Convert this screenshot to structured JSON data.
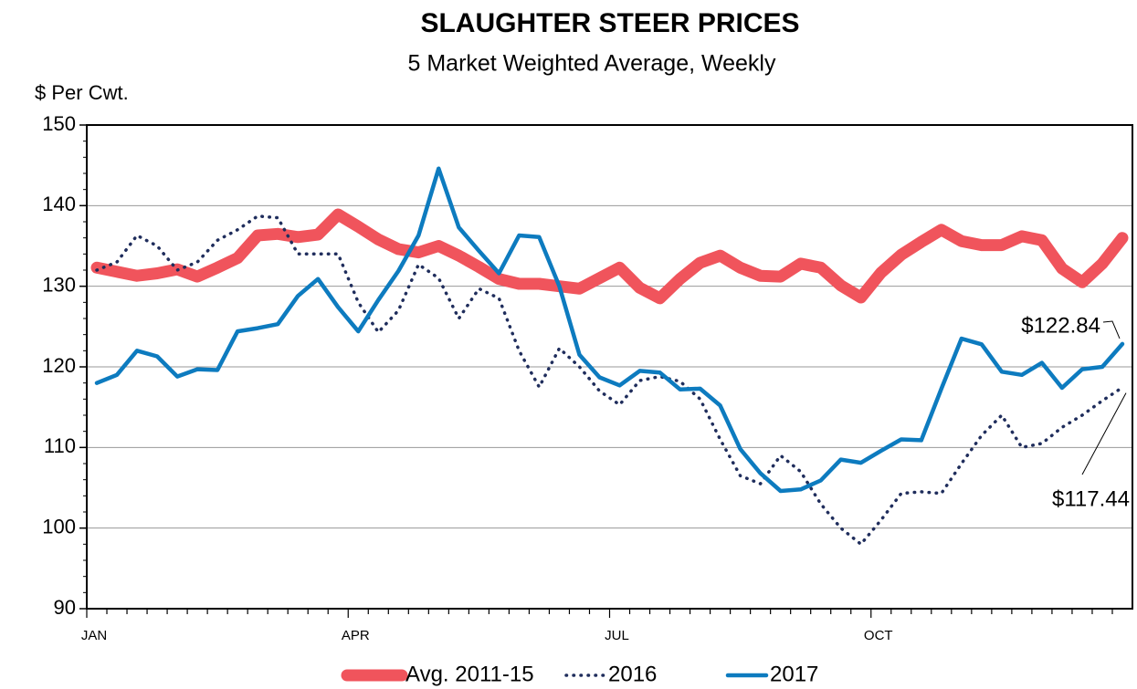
{
  "chart_data": {
    "type": "line",
    "title": "SLAUGHTER STEER PRICES",
    "subtitle": "5 Market Weighted Average, Weekly",
    "y_label": "$ Per Cwt.",
    "categories": [
      "JAN",
      null,
      null,
      null,
      null,
      null,
      null,
      null,
      null,
      null,
      null,
      null,
      null,
      "APR",
      null,
      null,
      null,
      null,
      null,
      null,
      null,
      null,
      null,
      null,
      null,
      null,
      "JUL",
      null,
      null,
      null,
      null,
      null,
      null,
      null,
      null,
      null,
      null,
      null,
      null,
      "OCT",
      null,
      null,
      null,
      null,
      null,
      null,
      null,
      null,
      null,
      null,
      null,
      null
    ],
    "ylim": [
      90,
      150
    ],
    "yticks": [
      90,
      100,
      110,
      120,
      130,
      140,
      150
    ],
    "grid": true,
    "legend": "bottom",
    "series": [
      {
        "name": "Avg. 2011-15",
        "color": "#f0545c",
        "style": "solid",
        "width": 13,
        "values": [
          132.3,
          131.8,
          131.3,
          131.6,
          132.1,
          131.2,
          132.3,
          133.5,
          136.3,
          136.5,
          136.1,
          136.4,
          138.9,
          137.4,
          135.8,
          134.6,
          134.2,
          135.0,
          133.8,
          132.4,
          130.9,
          130.3,
          130.3,
          130.0,
          129.7,
          131.0,
          132.3,
          129.8,
          128.5,
          130.9,
          132.9,
          133.8,
          132.3,
          131.3,
          131.2,
          132.8,
          132.3,
          130.1,
          128.6,
          131.7,
          133.9,
          135.5,
          137.0,
          135.6,
          135.1,
          135.1,
          136.2,
          135.7,
          132.2,
          130.5,
          132.8,
          136.0
        ]
      },
      {
        "name": "2016",
        "color": "#1f2d5c",
        "style": "dotted",
        "width": 3.5,
        "values": [
          132.0,
          133.0,
          136.3,
          135.0,
          132.0,
          133.0,
          135.7,
          137.0,
          138.7,
          138.5,
          134.0,
          134.0,
          134.0,
          128.0,
          124.3,
          127.0,
          132.7,
          131.0,
          126.0,
          129.7,
          128.5,
          122.0,
          117.5,
          122.3,
          120.0,
          117.0,
          115.3,
          118.3,
          118.8,
          118.2,
          116.0,
          111.0,
          106.5,
          105.5,
          109.0,
          107.0,
          103.0,
          100.0,
          98.0,
          101.0,
          104.3,
          104.5,
          104.3,
          108.0,
          111.5,
          114.0,
          110.0,
          110.5,
          112.5,
          114.0,
          115.8,
          117.44
        ],
        "value_labels": [
          null,
          null,
          null,
          null,
          null,
          null,
          null,
          null,
          null,
          null,
          null,
          null,
          null,
          null,
          null,
          null,
          null,
          null,
          null,
          null,
          null,
          null,
          null,
          null,
          null,
          null,
          null,
          null,
          null,
          null,
          null,
          null,
          null,
          null,
          null,
          null,
          null,
          null,
          null,
          null,
          null,
          null,
          null,
          null,
          null,
          null,
          null,
          null,
          null,
          null,
          null,
          "$117.44"
        ]
      },
      {
        "name": "2017",
        "color": "#0d7bbf",
        "style": "solid",
        "width": 4.5,
        "values": [
          118.0,
          119.0,
          122.0,
          121.3,
          118.8,
          119.7,
          119.6,
          124.4,
          124.8,
          125.3,
          128.8,
          130.9,
          127.4,
          124.4,
          128.3,
          131.9,
          136.3,
          144.6,
          137.3,
          134.4,
          131.6,
          136.3,
          136.1,
          130.0,
          121.5,
          118.7,
          117.7,
          119.5,
          119.3,
          117.2,
          117.3,
          115.2,
          109.8,
          106.8,
          104.6,
          104.8,
          105.9,
          108.5,
          108.1,
          109.6,
          111.0,
          110.9,
          117.3,
          123.5,
          122.8,
          119.4,
          119.0,
          120.5,
          117.4,
          119.7,
          120.0,
          122.84
        ],
        "value_labels": [
          null,
          null,
          null,
          null,
          null,
          null,
          null,
          null,
          null,
          null,
          null,
          null,
          null,
          null,
          null,
          null,
          null,
          null,
          null,
          null,
          null,
          null,
          null,
          null,
          null,
          null,
          null,
          null,
          null,
          null,
          null,
          null,
          null,
          null,
          null,
          null,
          null,
          null,
          null,
          null,
          null,
          null,
          null,
          null,
          null,
          null,
          null,
          null,
          null,
          null,
          null,
          "$122.84"
        ]
      }
    ]
  }
}
